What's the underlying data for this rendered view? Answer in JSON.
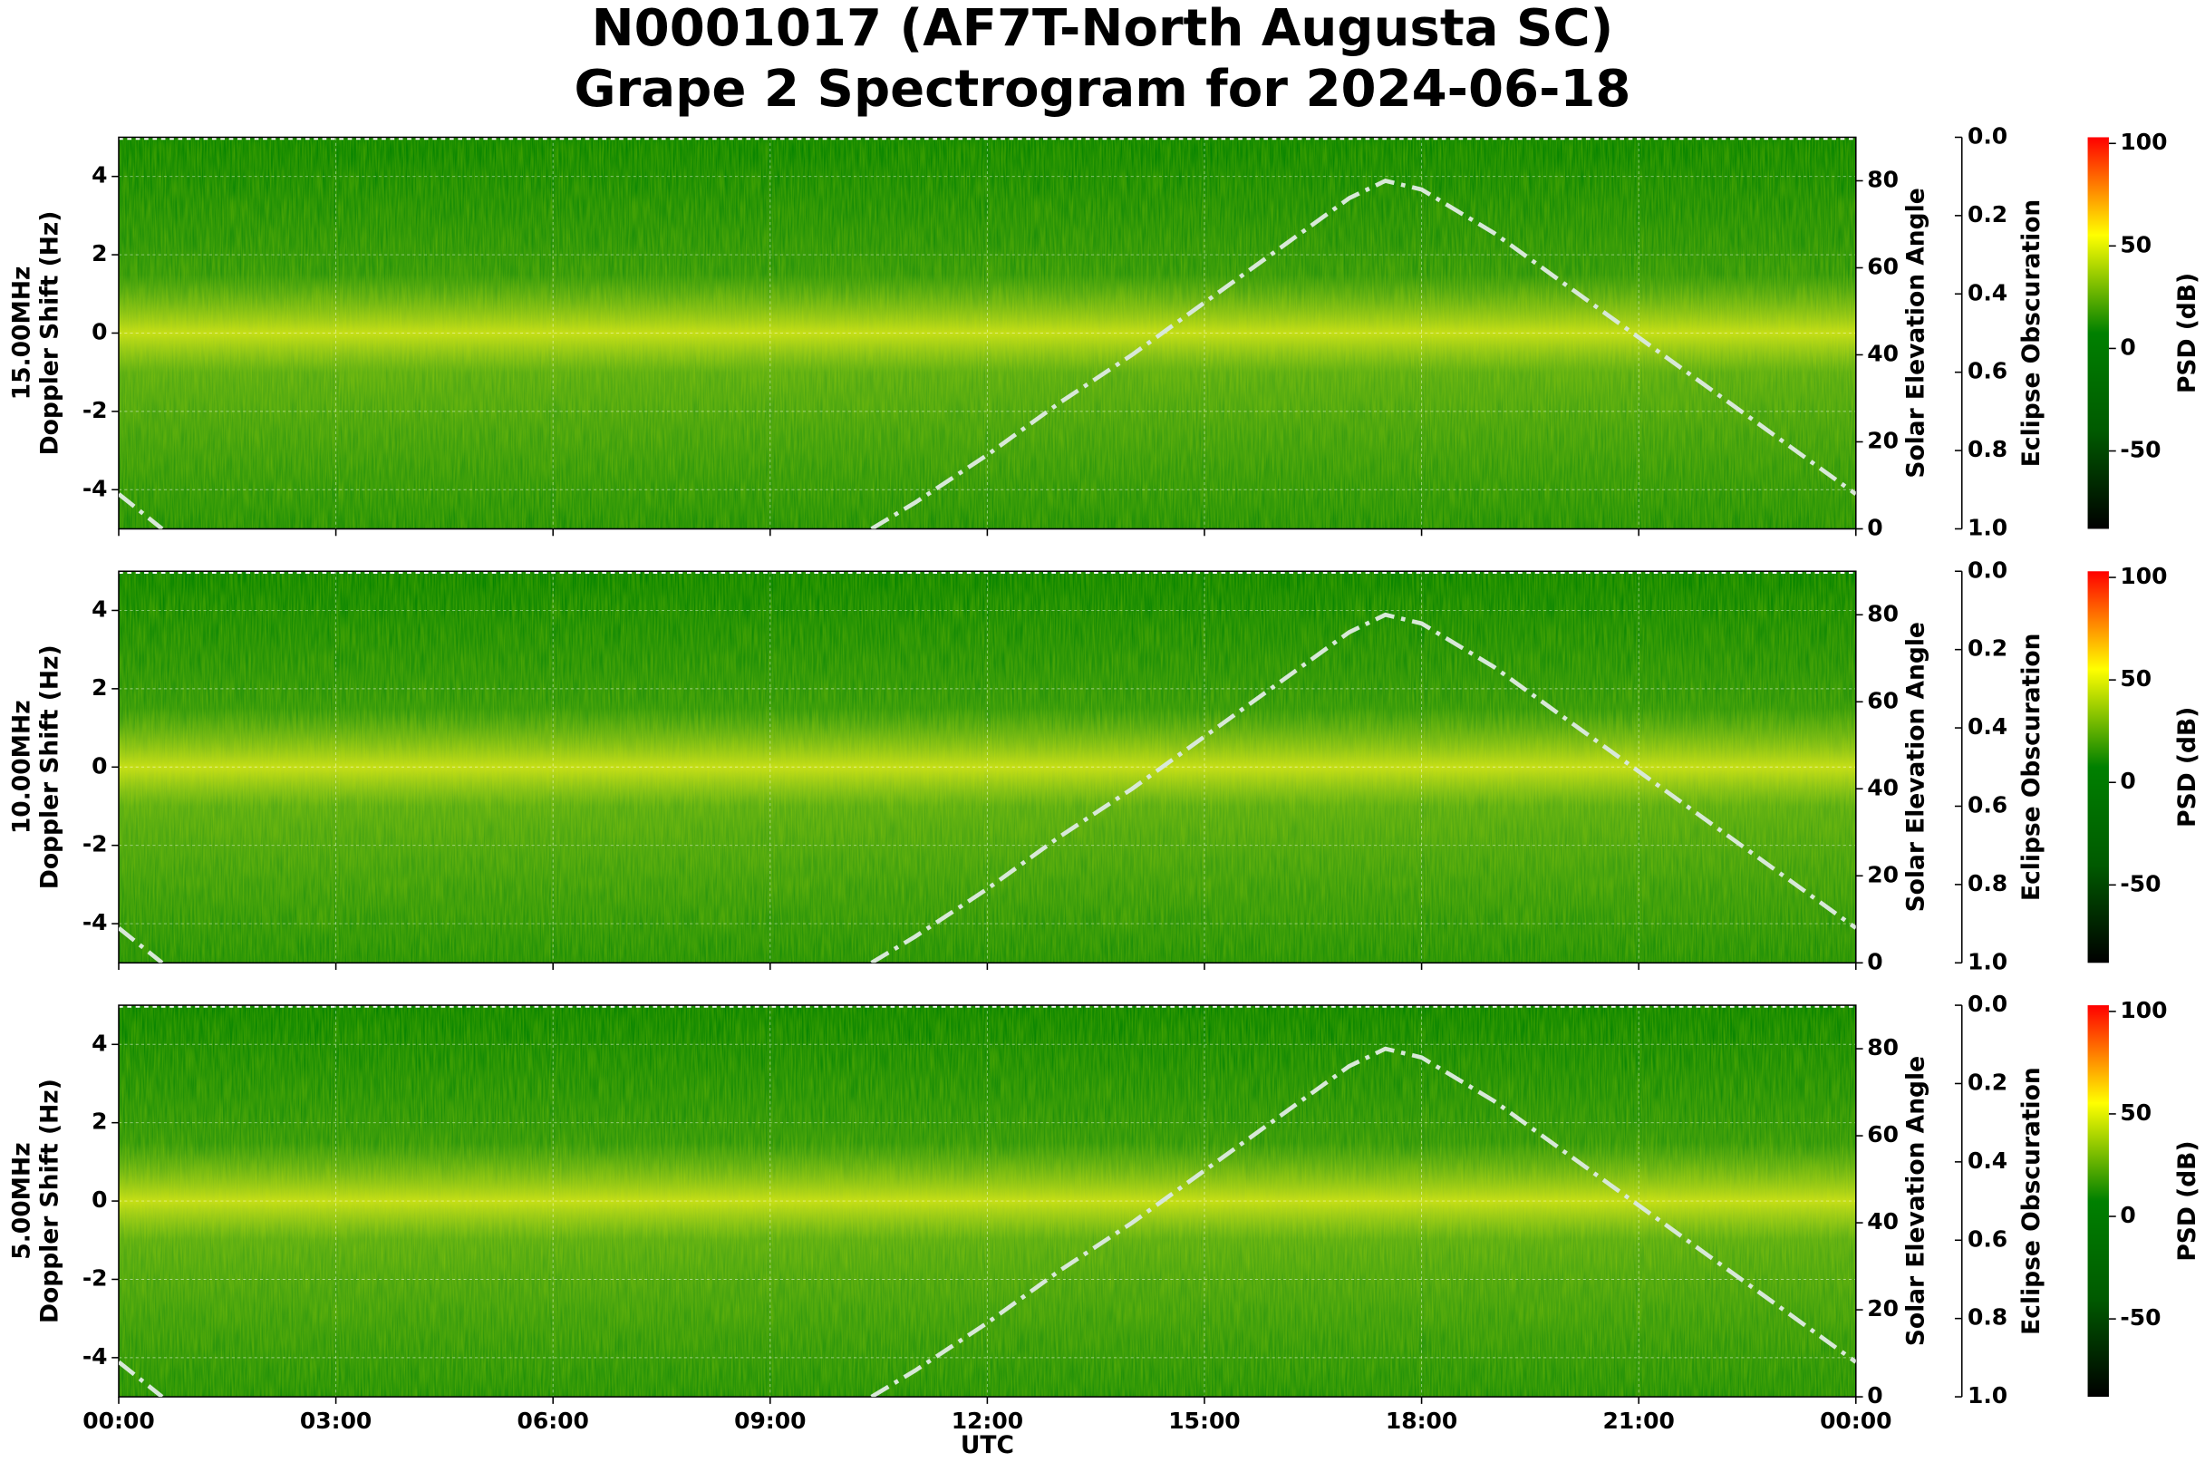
{
  "title": [
    "N0001017 (AF7T-North Augusta SC)",
    "Grape 2 Spectrogram for 2024-06-18"
  ],
  "chart_data": [
    {
      "type": "spectrogram",
      "frequency_label": "15.00MHz",
      "ylabel": "Doppler Shift (Hz)",
      "xlim": [
        0,
        24
      ],
      "ylim": [
        -5,
        5
      ],
      "yticks": [
        -4,
        -2,
        0,
        2,
        4
      ],
      "grid": true,
      "y2label": "Solar Elevation Angle",
      "y2lim": [
        0,
        90
      ],
      "y2ticks": [
        0,
        20,
        40,
        60,
        80
      ],
      "y3label": "Eclipse Obscuration",
      "y3lim": [
        1,
        0
      ],
      "y3ticks": [
        {
          "value": 0,
          "label": "0.0"
        },
        {
          "value": 0.2,
          "label": "0.2"
        },
        {
          "value": 0.4,
          "label": "0.4"
        },
        {
          "value": 0.6,
          "label": "0.6"
        },
        {
          "value": 0.8,
          "label": "0.8"
        },
        {
          "value": 1,
          "label": "1.0"
        }
      ],
      "colorbar_label": "PSD (dB)",
      "zlim": [
        -88,
        103
      ],
      "zticks": [
        -50,
        0,
        50,
        100
      ],
      "colormap": [
        "#000000",
        "#005a00",
        "#008000",
        "#ffff00",
        "#ff0000"
      ],
      "series": [
        {
          "color": "#d8e8d8",
          "axis": "y2",
          "x": [
            0,
            0.6,
            null,
            10.4,
            11,
            12,
            13,
            14,
            15,
            16,
            17,
            17.5,
            18,
            19,
            20,
            21,
            22,
            23,
            24
          ],
          "values": [
            8,
            0,
            null,
            0,
            6,
            17,
            29,
            40,
            52,
            64,
            76,
            80,
            78,
            68,
            56,
            44,
            32,
            20,
            8
          ]
        }
      ]
    },
    {
      "type": "spectrogram",
      "frequency_label": "10.00MHz",
      "ylabel": "Doppler Shift (Hz)",
      "xlim": [
        0,
        24
      ],
      "ylim": [
        -5,
        5
      ],
      "yticks": [
        -4,
        -2,
        0,
        2,
        4
      ],
      "grid": true,
      "y2label": "Solar Elevation Angle",
      "y2lim": [
        0,
        90
      ],
      "y2ticks": [
        0,
        20,
        40,
        60,
        80
      ],
      "y3label": "Eclipse Obscuration",
      "y3lim": [
        1,
        0
      ],
      "y3ticks": [
        {
          "value": 0,
          "label": "0.0"
        },
        {
          "value": 0.2,
          "label": "0.2"
        },
        {
          "value": 0.4,
          "label": "0.4"
        },
        {
          "value": 0.6,
          "label": "0.6"
        },
        {
          "value": 0.8,
          "label": "0.8"
        },
        {
          "value": 1,
          "label": "1.0"
        }
      ],
      "colorbar_label": "PSD (dB)",
      "zlim": [
        -88,
        103
      ],
      "zticks": [
        -50,
        0,
        50,
        100
      ],
      "colormap": [
        "#000000",
        "#005a00",
        "#008000",
        "#ffff00",
        "#ff0000"
      ],
      "series": [
        {
          "color": "#d8e8d8",
          "axis": "y2",
          "x": [
            0,
            0.6,
            null,
            10.4,
            11,
            12,
            13,
            14,
            15,
            16,
            17,
            17.5,
            18,
            19,
            20,
            21,
            22,
            23,
            24
          ],
          "values": [
            8,
            0,
            null,
            0,
            6,
            17,
            29,
            40,
            52,
            64,
            76,
            80,
            78,
            68,
            56,
            44,
            32,
            20,
            8
          ]
        }
      ]
    },
    {
      "type": "spectrogram",
      "frequency_label": "5.00MHz",
      "ylabel": "Doppler Shift (Hz)",
      "xlim": [
        0,
        24
      ],
      "ylim": [
        -5,
        5
      ],
      "yticks": [
        -4,
        -2,
        0,
        2,
        4
      ],
      "grid": true,
      "xlabel": "UTC",
      "xticks": [
        {
          "value": 0,
          "label": "00:00"
        },
        {
          "value": 3,
          "label": "03:00"
        },
        {
          "value": 6,
          "label": "06:00"
        },
        {
          "value": 9,
          "label": "09:00"
        },
        {
          "value": 12,
          "label": "12:00"
        },
        {
          "value": 15,
          "label": "15:00"
        },
        {
          "value": 18,
          "label": "18:00"
        },
        {
          "value": 21,
          "label": "21:00"
        },
        {
          "value": 24,
          "label": "00:00"
        }
      ],
      "y2label": "Solar Elevation Angle",
      "y2lim": [
        0,
        90
      ],
      "y2ticks": [
        0,
        20,
        40,
        60,
        80
      ],
      "y3label": "Eclipse Obscuration",
      "y3lim": [
        1,
        0
      ],
      "y3ticks": [
        {
          "value": 0,
          "label": "0.0"
        },
        {
          "value": 0.2,
          "label": "0.2"
        },
        {
          "value": 0.4,
          "label": "0.4"
        },
        {
          "value": 0.6,
          "label": "0.6"
        },
        {
          "value": 0.8,
          "label": "0.8"
        },
        {
          "value": 1,
          "label": "1.0"
        }
      ],
      "colorbar_label": "PSD (dB)",
      "zlim": [
        -88,
        103
      ],
      "zticks": [
        -50,
        0,
        50,
        100
      ],
      "colormap": [
        "#000000",
        "#005a00",
        "#008000",
        "#ffff00",
        "#ff0000"
      ],
      "series": [
        {
          "color": "#d8e8d8",
          "axis": "y2",
          "x": [
            0,
            0.6,
            null,
            10.4,
            11,
            12,
            13,
            14,
            15,
            16,
            17,
            17.5,
            18,
            19,
            20,
            21,
            22,
            23,
            24
          ],
          "values": [
            8,
            0,
            null,
            0,
            6,
            17,
            29,
            40,
            52,
            64,
            76,
            80,
            78,
            68,
            56,
            44,
            32,
            20,
            8
          ]
        }
      ]
    }
  ]
}
